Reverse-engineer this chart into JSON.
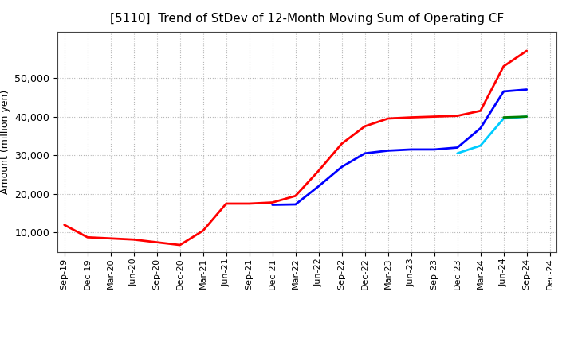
{
  "title": "[5110]  Trend of StDev of 12-Month Moving Sum of Operating CF",
  "ylabel": "Amount (million yen)",
  "background_color": "#ffffff",
  "grid_color": "#b0b0b0",
  "title_fontsize": 11,
  "axis_fontsize": 9,
  "legend_fontsize": 9,
  "line_width": 2.0,
  "series": {
    "3 Years": {
      "color": "#ff0000",
      "x": [
        "Sep-19",
        "Dec-19",
        "Mar-20",
        "Jun-20",
        "Sep-20",
        "Dec-20",
        "Mar-21",
        "Jun-21",
        "Sep-21",
        "Dec-21",
        "Mar-22",
        "Jun-22",
        "Sep-22",
        "Dec-22",
        "Mar-23",
        "Jun-23",
        "Sep-23",
        "Dec-23",
        "Mar-24",
        "Jun-24",
        "Sep-24"
      ],
      "y": [
        12000,
        8800,
        8500,
        8200,
        7500,
        6800,
        10500,
        17500,
        17500,
        17800,
        19500,
        26000,
        33000,
        37500,
        39500,
        39800,
        40000,
        40200,
        41500,
        53000,
        57000
      ]
    },
    "5 Years": {
      "color": "#0000ff",
      "x": [
        "Dec-21",
        "Mar-22",
        "Jun-22",
        "Sep-22",
        "Dec-22",
        "Mar-23",
        "Jun-23",
        "Sep-23",
        "Dec-23",
        "Mar-24",
        "Jun-24",
        "Sep-24"
      ],
      "y": [
        17200,
        17300,
        22000,
        27000,
        30500,
        31200,
        31500,
        31500,
        32000,
        37000,
        46500,
        47000
      ]
    },
    "7 Years": {
      "color": "#00ccff",
      "x": [
        "Dec-23",
        "Mar-24",
        "Jun-24",
        "Sep-24"
      ],
      "y": [
        30500,
        32500,
        39500,
        40000
      ]
    },
    "10 Years": {
      "color": "#008000",
      "x": [
        "Jun-24",
        "Sep-24"
      ],
      "y": [
        39800,
        40000
      ]
    }
  },
  "xtick_labels": [
    "Sep-19",
    "Dec-19",
    "Mar-20",
    "Jun-20",
    "Sep-20",
    "Dec-20",
    "Mar-21",
    "Jun-21",
    "Sep-21",
    "Dec-21",
    "Mar-22",
    "Jun-22",
    "Sep-22",
    "Dec-22",
    "Mar-23",
    "Jun-23",
    "Sep-23",
    "Dec-23",
    "Mar-24",
    "Jun-24",
    "Sep-24",
    "Dec-24"
  ],
  "ylim": [
    5000,
    62000
  ],
  "yticks": [
    10000,
    20000,
    30000,
    40000,
    50000
  ],
  "figsize": [
    7.2,
    4.4
  ],
  "dpi": 100
}
